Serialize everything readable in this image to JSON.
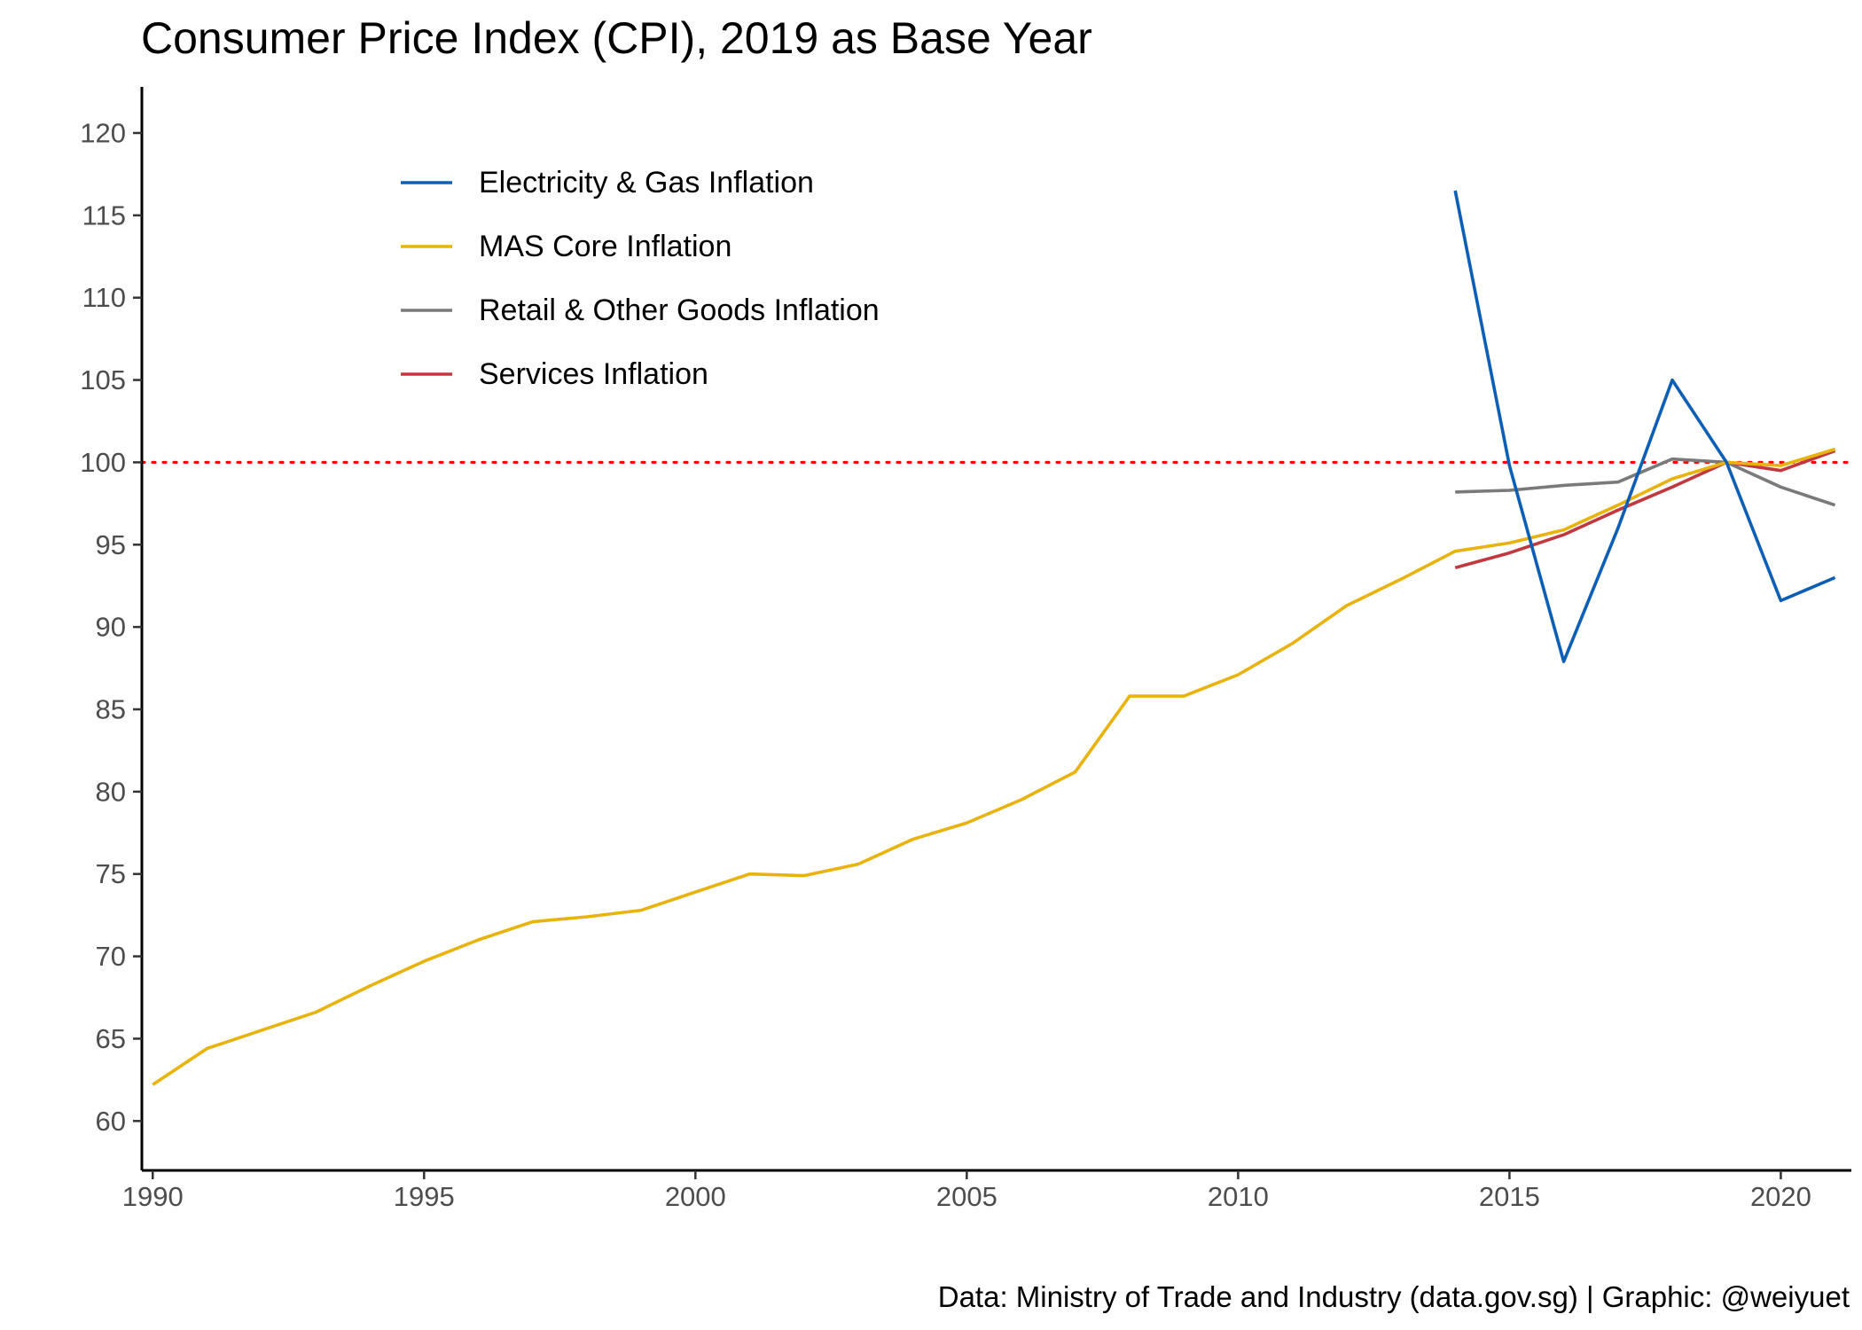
{
  "chart_data": {
    "type": "line",
    "title": "Consumer Price Index (CPI), 2019 as Base Year",
    "caption": "Data: Ministry of Trade and Industry (data.gov.sg) | Graphic: @weiyuet",
    "xlabel": "",
    "ylabel": "",
    "xlim": [
      1989.8,
      2021.3
    ],
    "ylim": [
      57,
      122.8
    ],
    "x_ticks": [
      1990,
      1995,
      2000,
      2005,
      2010,
      2015,
      2020
    ],
    "y_ticks": [
      60,
      65,
      70,
      75,
      80,
      85,
      90,
      95,
      100,
      105,
      110,
      115,
      120
    ],
    "grid": false,
    "legend_position": "top-left",
    "reference_line": {
      "y": 100,
      "style": "dotted",
      "color": "#ff0000"
    },
    "series": [
      {
        "name": "Electricity & Gas Inflation",
        "color": "#0c5fb5",
        "x": [
          2014,
          2015,
          2016,
          2017,
          2018,
          2019,
          2020,
          2021
        ],
        "y": [
          116.5,
          99.8,
          87.9,
          96.0,
          105.0,
          100.0,
          91.6,
          93.0
        ]
      },
      {
        "name": "MAS Core Inflation",
        "color": "#e8b30e",
        "x": [
          1990,
          1991,
          1992,
          1993,
          1994,
          1995,
          1996,
          1997,
          1998,
          1999,
          2000,
          2001,
          2002,
          2003,
          2004,
          2005,
          2006,
          2007,
          2008,
          2009,
          2010,
          2011,
          2012,
          2013,
          2014,
          2015,
          2016,
          2017,
          2018,
          2019,
          2020,
          2021
        ],
        "y": [
          62.2,
          64.4,
          65.5,
          66.6,
          68.2,
          69.7,
          71.0,
          72.1,
          72.4,
          72.8,
          73.9,
          75.0,
          74.9,
          75.6,
          77.1,
          78.1,
          79.5,
          81.2,
          85.8,
          85.8,
          87.1,
          89.0,
          91.3,
          92.9,
          94.6,
          95.1,
          95.9,
          97.4,
          99.0,
          100.0,
          99.8,
          100.8
        ]
      },
      {
        "name": "Retail & Other Goods Inflation",
        "color": "#7a7a7a",
        "x": [
          2014,
          2015,
          2016,
          2017,
          2018,
          2019,
          2020,
          2021
        ],
        "y": [
          98.2,
          98.3,
          98.6,
          98.8,
          100.2,
          100.0,
          98.5,
          97.4
        ]
      },
      {
        "name": "Services Inflation",
        "color": "#c0393e",
        "x": [
          2014,
          2015,
          2016,
          2017,
          2018,
          2019,
          2020,
          2021
        ],
        "y": [
          93.6,
          94.5,
          95.6,
          97.1,
          98.5,
          100.0,
          99.5,
          100.7
        ]
      }
    ]
  }
}
